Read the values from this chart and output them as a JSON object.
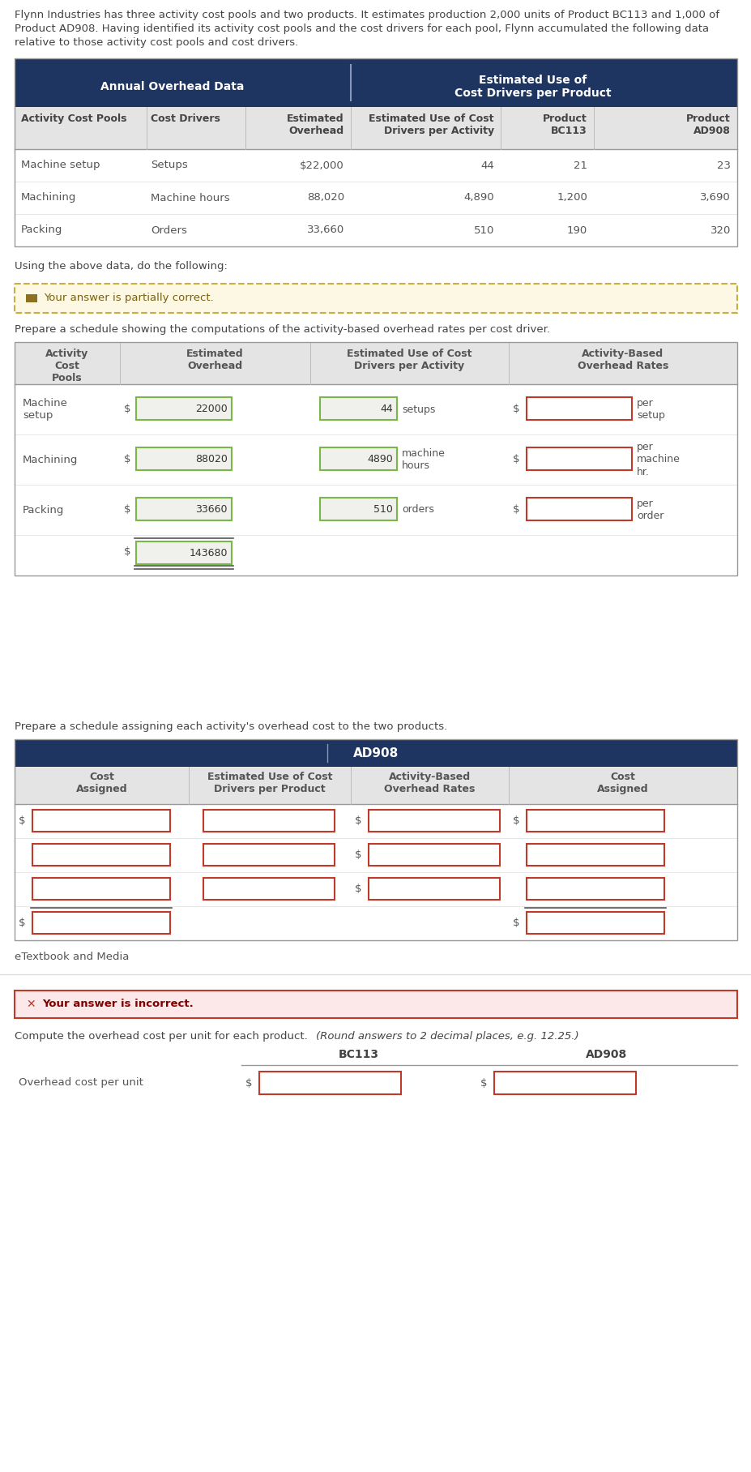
{
  "intro_text_lines": [
    "Flynn Industries has three activity cost pools and two products. It estimates production 2,000 units of Product BC113 and 1,000 of",
    "Product AD908. Having identified its activity cost pools and the cost drivers for each pool, Flynn accumulated the following data",
    "relative to those activity cost pools and cost drivers."
  ],
  "table1_header_left": "Annual Overhead Data",
  "table1_header_right": "Estimated Use of\nCost Drivers per Product",
  "table1_col_headers": [
    "Activity Cost Pools",
    "Cost Drivers",
    "Estimated\nOverhead",
    "Estimated Use of Cost\nDrivers per Activity",
    "Product\nBC113",
    "Product\nAD908"
  ],
  "table1_rows": [
    [
      "Machine setup",
      "Setups",
      "$22,000",
      "44",
      "21",
      "23"
    ],
    [
      "Machining",
      "Machine hours",
      "88,020",
      "4,890",
      "1,200",
      "3,690"
    ],
    [
      "Packing",
      "Orders",
      "33,660",
      "510",
      "190",
      "320"
    ]
  ],
  "using_text": "Using the above data, do the following:",
  "partial_correct_text": "Your answer is partially correct.",
  "schedule1_title": "Prepare a schedule showing the computations of the activity-based overhead rates per cost driver.",
  "schedule1_headers": [
    "Activity\nCost\nPools",
    "Estimated\nOverhead",
    "Estimated Use of Cost\nDrivers per Activity",
    "Activity-Based\nOverhead Rates"
  ],
  "schedule1_rows": [
    {
      "pool": "Machine\nsetup",
      "overhead": "22000",
      "drivers": "44",
      "unit": "setups",
      "rate_label": "per\nsetup"
    },
    {
      "pool": "Machining",
      "overhead": "88020",
      "drivers": "4890",
      "unit": "machine\nhours",
      "rate_label": "per\nmachine\nhr."
    },
    {
      "pool": "Packing",
      "overhead": "33660",
      "drivers": "510",
      "unit": "orders",
      "rate_label": "per\norder"
    }
  ],
  "total_overhead": "143680",
  "schedule2_title": "Prepare a schedule assigning each activity's overhead cost to the two products.",
  "schedule2_main_header": "AD908",
  "schedule2_sub_headers": [
    "Cost\nAssigned",
    "Estimated Use of Cost\nDrivers per Product",
    "Activity-Based\nOverhead Rates",
    "Cost\nAssigned"
  ],
  "etextbook": "eTextbook and Media",
  "incorrect_text": "Your answer is incorrect.",
  "schedule3_title_normal": "Compute the overhead cost per unit for each product. ",
  "schedule3_title_italic": "(Round answers to 2 decimal places, e.g. 12.25.)",
  "schedule3_row_label": "Overhead cost per unit",
  "schedule3_products": [
    "BC113",
    "AD908"
  ],
  "bg_color": "#ffffff",
  "table1_header_bg": "#1e3461",
  "table1_header_fg": "#ffffff",
  "table1_subheader_bg": "#e4e4e4",
  "table1_subheader_fg": "#444444",
  "table1_row_fg": "#555555",
  "schedule1_header_bg": "#e4e4e4",
  "schedule1_header_fg": "#555555",
  "schedule2_header_bg": "#1e3461",
  "schedule2_header_fg": "#ffffff",
  "schedule2_subheader_bg": "#e4e4e4",
  "schedule2_subheader_fg": "#555555",
  "input_box_green_border": "#7ab648",
  "input_box_red_border": "#c0392b",
  "input_box_filled_bg": "#f0f0ec",
  "partial_correct_bg": "#fdf8e4",
  "partial_correct_border": "#c8b040",
  "partial_correct_fg": "#7a6010",
  "partial_correct_icon": "#8b7020",
  "incorrect_bg": "#fce8e8",
  "incorrect_border": "#c0392b",
  "incorrect_fg": "#800000",
  "separator_color": "#cccccc",
  "line_color": "#aaaaaa",
  "text_color": "#555555"
}
